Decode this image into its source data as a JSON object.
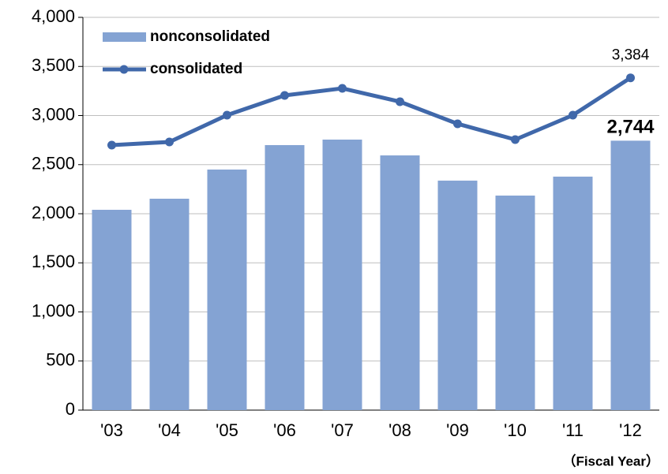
{
  "chart_data": {
    "type": "bar_line",
    "x_label": "（Fiscal Year）",
    "categories": [
      "'03",
      "'04",
      "'05",
      "'06",
      "'07",
      "'08",
      "'09",
      "'10",
      "'11",
      "'12"
    ],
    "series": [
      {
        "name": "nonconsolidated",
        "type": "bar",
        "color": "#84a3d3",
        "values": [
          2040,
          2153,
          2450,
          2699,
          2755,
          2594,
          2337,
          2185,
          2378,
          2744
        ],
        "value_labels": [
          null,
          null,
          null,
          null,
          null,
          null,
          null,
          null,
          null,
          "2,744"
        ]
      },
      {
        "name": "consolidated",
        "type": "line",
        "color": "#4068aa",
        "values": [
          2699,
          2731,
          3004,
          3205,
          3277,
          3141,
          2916,
          2755,
          3004,
          3384
        ],
        "value_labels": [
          null,
          null,
          null,
          null,
          null,
          null,
          null,
          null,
          null,
          "3,384"
        ]
      }
    ],
    "ylim": [
      0,
      4000
    ],
    "yticks": [
      0,
      500,
      {
        "value": 1000,
        "label": "1,000"
      },
      {
        "value": 1500,
        "label": "1,500"
      },
      {
        "value": 2000,
        "label": "2,000"
      },
      {
        "value": 2500,
        "label": "2,500"
      },
      {
        "value": 3000,
        "label": "3,000"
      },
      {
        "value": 3500,
        "label": "3,500"
      },
      {
        "value": 4000,
        "label": "4,000"
      }
    ],
    "grid": true,
    "legend": "upper left"
  }
}
